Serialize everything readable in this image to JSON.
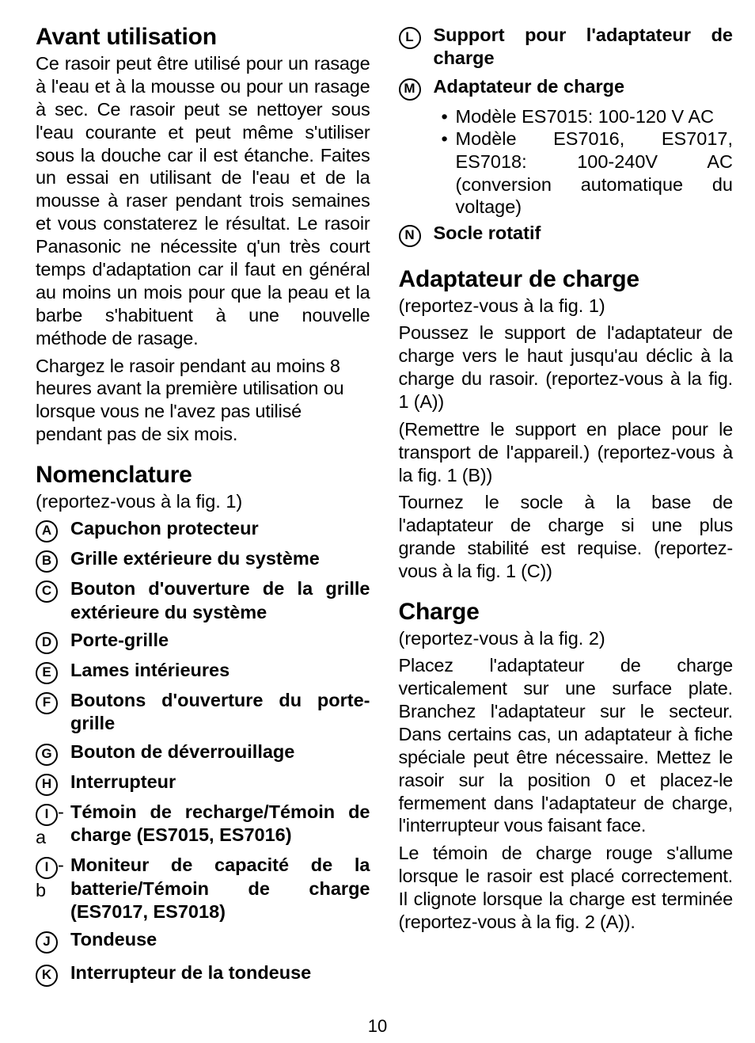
{
  "page_number": "10",
  "left": {
    "section1_title": "Avant utilisation",
    "section1_body": "Ce rasoir peut être utilisé pour un rasage à l'eau et à la mousse ou pour un rasage à sec. Ce rasoir peut se nettoyer sous l'eau courante et peut même s'utiliser sous la douche car il est étanche. Faites un essai en utilisant de l'eau et de la mousse à raser pendant trois semaines et vous constaterez le résultat. Le rasoir Panasonic ne nécessite q'un très court temps d'adaptation car il faut en général au moins un mois pour que la peau et la barbe s'habituent à une nouvelle méthode de rasage.",
    "section1_body2": "Chargez le rasoir pendant au moins 8 heures avant la première utilisation ou lorsque vous ne l'avez pas utilisé pendant pas de six mois.",
    "section2_title": "Nomenclature",
    "section2_ref": "(reportez-vous à la fig. 1)",
    "items": [
      {
        "letter": "A",
        "suffix": "",
        "text": "Capuchon protecteur"
      },
      {
        "letter": "B",
        "suffix": "",
        "text": "Grille extérieure du système"
      },
      {
        "letter": "C",
        "suffix": "",
        "text": "Bouton d'ouverture de la grille extérieure du système"
      },
      {
        "letter": "D",
        "suffix": "",
        "text": "Porte-grille"
      },
      {
        "letter": "E",
        "suffix": "",
        "text": "Lames intérieures"
      },
      {
        "letter": "F",
        "suffix": "",
        "text": "Boutons d'ouverture du porte-grille"
      },
      {
        "letter": "G",
        "suffix": "",
        "text": "Bouton de déverrouillage"
      },
      {
        "letter": "H",
        "suffix": "",
        "text": "Interrupteur"
      },
      {
        "letter": "I",
        "suffix": "-a",
        "text": "Témoin de recharge/Témoin de charge (ES7015, ES7016)"
      },
      {
        "letter": "I",
        "suffix": "-b",
        "text": "Moniteur de capacité de la batterie/Témoin de charge (ES7017, ES7018)"
      },
      {
        "letter": "J",
        "suffix": "",
        "text": "Tondeuse"
      }
    ]
  },
  "right": {
    "items_cont": [
      {
        "letter": "K",
        "text": "Interrupteur de la tondeuse"
      },
      {
        "letter": "L",
        "text": "Support pour l'adaptateur de charge"
      }
    ],
    "item_M": {
      "letter": "M",
      "text": "Adaptateur de charge"
    },
    "m_bullets": [
      "Modèle ES7015: 100-120 V AC",
      "Modèle ES7016, ES7017, ES7018: 100-240V AC (conversion automatique du voltage)"
    ],
    "item_N": {
      "letter": "N",
      "text": "Socle rotatif"
    },
    "section3_title": "Adaptateur de charge",
    "section3_ref": "(reportez-vous à la fig. 1)",
    "section3_body": "Poussez le support de l'adaptateur de charge vers le haut jusqu'au déclic à la charge du rasoir. (reportez-vous à la fig. 1 (A))",
    "section3_body2": "(Remettre le support en place pour le transport de l'appareil.) (reportez-vous à la fig. 1 (B))",
    "section3_body3": "Tournez le socle à la base de l'adaptateur de charge si une plus grande stabilité est requise. (reportez-vous à la fig. 1 (C))",
    "section4_title": "Charge",
    "section4_ref": "(reportez-vous à la fig. 2)",
    "section4_body": "Placez l'adaptateur de charge verticalement sur une surface plate. Branchez l'adaptateur sur le secteur. Dans certains cas, un adaptateur à fiche spéciale peut être nécessaire. Mettez le rasoir sur la position 0 et placez-le fermement dans l'adaptateur de charge, l'interrupteur vous faisant face.",
    "section4_body2": "Le témoin de charge rouge s'allume lorsque le rasoir est placé correctement. Il clignote lorsque la charge est terminée (reportez-vous à la fig. 2 (A))."
  }
}
